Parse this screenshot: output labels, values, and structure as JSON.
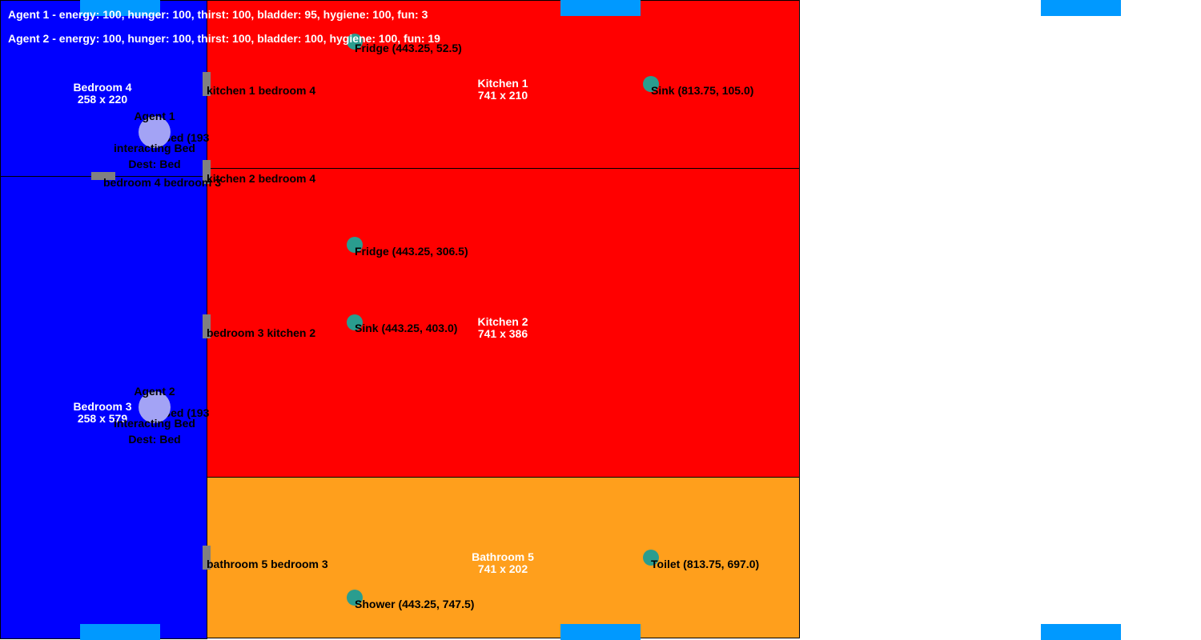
{
  "colors": {
    "bedroom": "#0000ff",
    "kitchen": "#ff0000",
    "bathroom": "#ff9f1c",
    "door": "#808080",
    "object": "#2a9d8f",
    "agent": "#a3a3f5",
    "marker": "#0099ff"
  },
  "status": {
    "agent1": "Agent 1 - energy: 100, hunger: 100, thirst: 100, bladder: 95, hygiene: 100, fun: 3",
    "agent2": "Agent 2 - energy: 100, hunger: 100, thirst: 100, bladder: 100, hygiene: 100, fun: 19"
  },
  "rooms": {
    "bedroom4": {
      "name": "Bedroom 4",
      "size": "258 x 220"
    },
    "bedroom3": {
      "name": "Bedroom 3",
      "size": "258 x 579"
    },
    "kitchen1": {
      "name": "Kitchen 1",
      "size": "741 x 210"
    },
    "kitchen2": {
      "name": "Kitchen 2",
      "size": "741 x 386"
    },
    "bathroom5": {
      "name": "Bathroom 5",
      "size": "741 x 202"
    }
  },
  "doors": {
    "kitchen1_bedroom4": "kitchen 1 bedroom 4",
    "kitchen2_bedroom4": "kitchen 2 bedroom 4",
    "bedroom4_bedroom3": "bedroom 4 bedroom 3",
    "bedroom3_kitchen2": "bedroom 3 kitchen 2",
    "bathroom5_bedroom3": "bathroom 5 bedroom 3"
  },
  "objects": {
    "fridge_k1": "Fridge (443.25, 52.5)",
    "sink_k1": "Sink (813.75, 105.0)",
    "fridge_k2": "Fridge (443.25, 306.5)",
    "sink_k2": "Sink (443.25, 403.0)",
    "toilet_b5": "Toilet (813.75, 697.0)",
    "shower_b5": "Shower (443.25, 747.5)",
    "bed_b4": "Bed (193",
    "bed_b3": "Bed (193"
  },
  "agents": {
    "agent1": {
      "name": "Agent 1",
      "action": "interacting Bed",
      "dest": "Dest: Bed"
    },
    "agent2": {
      "name": "Agent 2",
      "action": "interacting Bed",
      "dest": "Dest: Bed"
    }
  }
}
